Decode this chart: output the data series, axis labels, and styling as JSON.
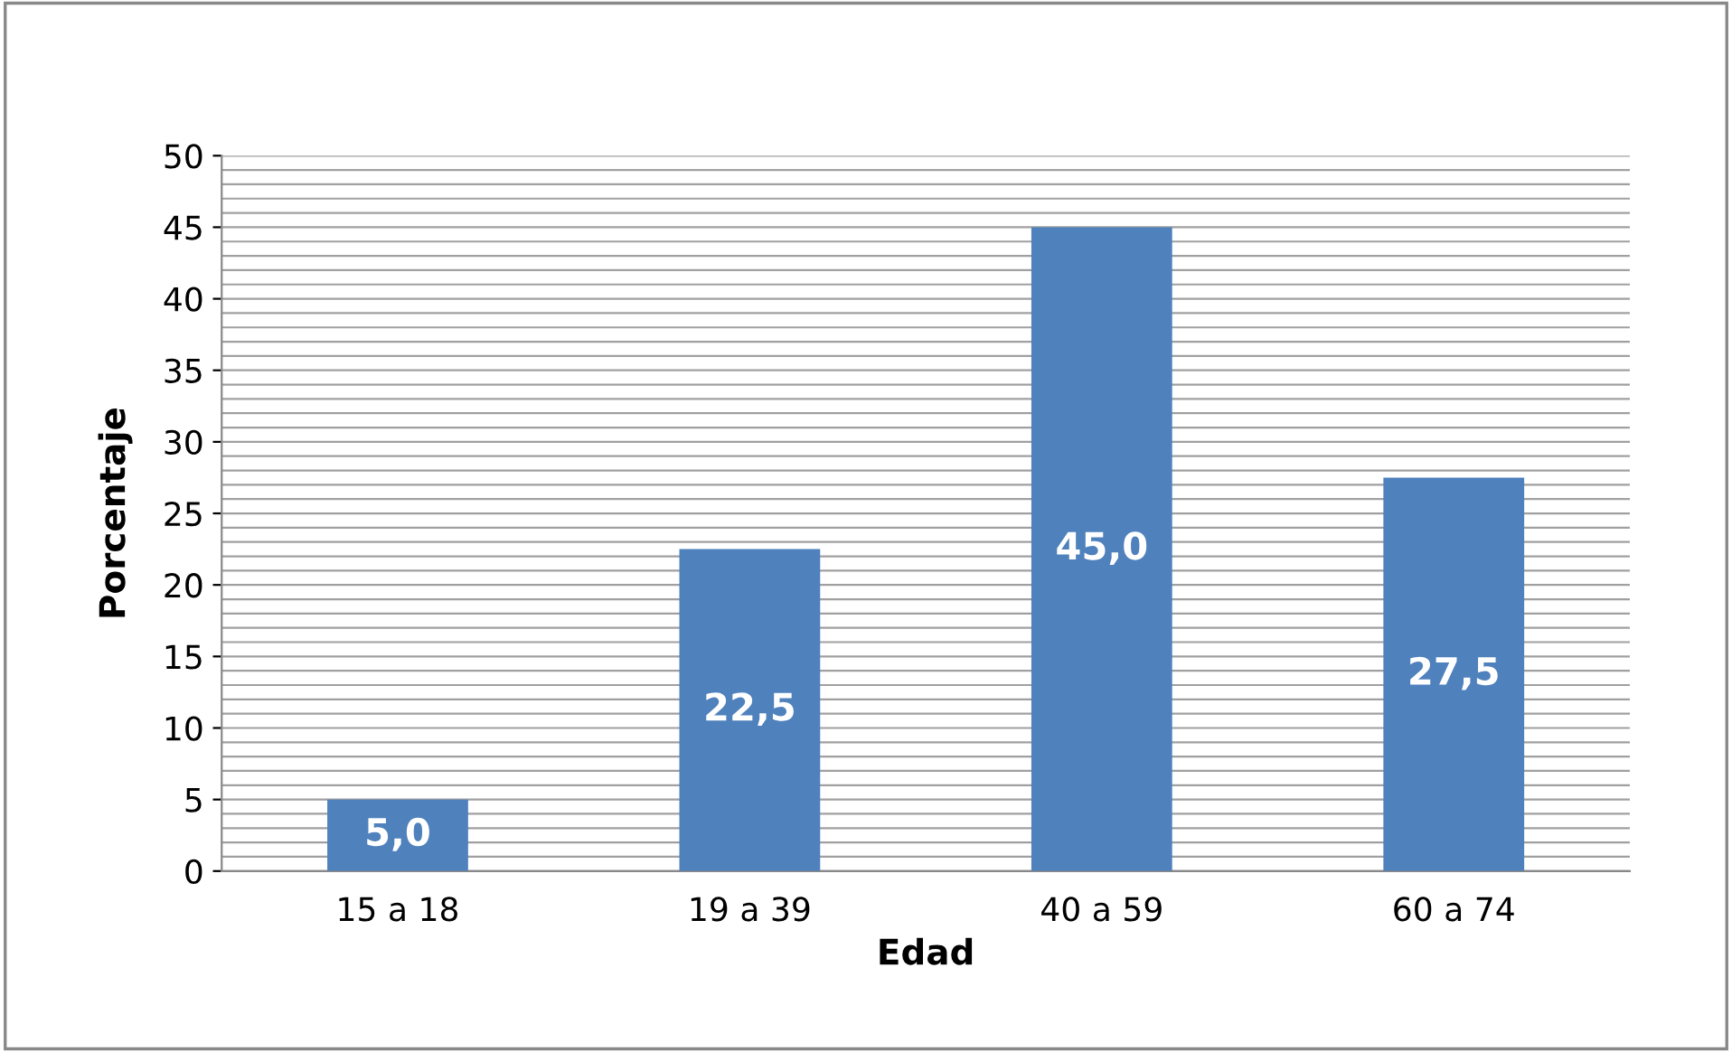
{
  "chart_data": {
    "type": "bar",
    "xlabel": "Edad",
    "ylabel": "Porcentaje",
    "categories": [
      "15 a 18",
      "19 a 39",
      "40 a 59",
      "60 a 74"
    ],
    "values": [
      5.0,
      22.5,
      45.0,
      27.5
    ],
    "value_labels": [
      "5,0",
      "22,5",
      "45,0",
      "27,5"
    ],
    "color": "#4f81bd",
    "ylim": [
      0,
      50
    ],
    "yticks": [
      0,
      {
        "value": 1,
        "label": null
      },
      {
        "value": 2,
        "label": null
      },
      {
        "value": 3,
        "label": null
      },
      {
        "value": 4,
        "label": null
      },
      5,
      {
        "value": 6,
        "label": null
      },
      {
        "value": 7,
        "label": null
      },
      {
        "value": 8,
        "label": null
      },
      {
        "value": 9,
        "label": null
      },
      10,
      {
        "value": 11,
        "label": null
      },
      {
        "value": 12,
        "label": null
      },
      {
        "value": 13,
        "label": null
      },
      {
        "value": 14,
        "label": null
      },
      15,
      {
        "value": 16,
        "label": null
      },
      {
        "value": 17,
        "label": null
      },
      {
        "value": 18,
        "label": null
      },
      {
        "value": 19,
        "label": null
      },
      20,
      {
        "value": 21,
        "label": null
      },
      {
        "value": 22,
        "label": null
      },
      {
        "value": 23,
        "label": null
      },
      {
        "value": 24,
        "label": null
      },
      25,
      {
        "value": 26,
        "label": null
      },
      {
        "value": 27,
        "label": null
      },
      {
        "value": 28,
        "label": null
      },
      {
        "value": 29,
        "label": null
      },
      30,
      {
        "value": 31,
        "label": null
      },
      {
        "value": 32,
        "label": null
      },
      {
        "value": 33,
        "label": null
      },
      {
        "value": 34,
        "label": null
      },
      35,
      {
        "value": 36,
        "label": null
      },
      {
        "value": 37,
        "label": null
      },
      {
        "value": 38,
        "label": null
      },
      {
        "value": 39,
        "label": null
      },
      40,
      {
        "value": 41,
        "label": null
      },
      {
        "value": 42,
        "label": null
      },
      {
        "value": 43,
        "label": null
      },
      {
        "value": 44,
        "label": null
      },
      45,
      {
        "value": 46,
        "label": null
      },
      {
        "value": 47,
        "label": null
      },
      {
        "value": 48,
        "label": null
      },
      {
        "value": 49,
        "label": null
      },
      50
    ],
    "grid": "y"
  }
}
